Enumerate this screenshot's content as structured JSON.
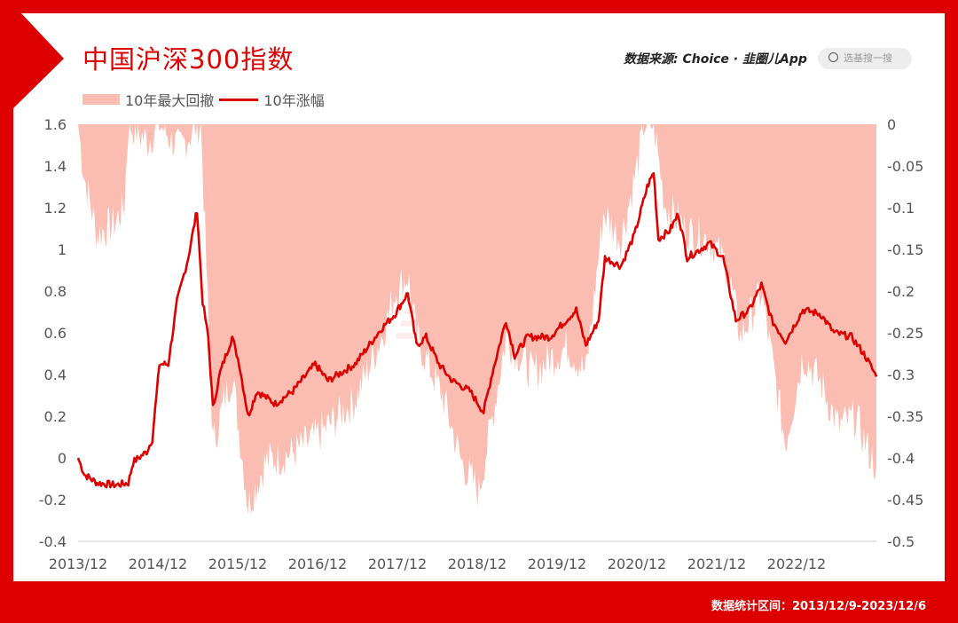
{
  "header": {
    "title": "中国沪深300指数",
    "source_label": "数据来源: Choice · ",
    "source_brand": "韭圈儿App",
    "search_placeholder": "选基搜一搜"
  },
  "footer": {
    "range": "数据统计区间：2013/12/9-2023/12/6"
  },
  "watermark": "韭圈儿",
  "colors": {
    "frame": "#dc0000",
    "line": "#dc0000",
    "area": "#fbbdb2"
  },
  "chart_data": {
    "type": "line+area",
    "title": "中国沪深300指数",
    "legend": [
      "10年最大回撤",
      "10年涨幅"
    ],
    "legend_placement": "top-left",
    "x_range": [
      2013.93,
      2023.93
    ],
    "x_ticks": [
      "2013/12",
      "2014/12",
      "2015/12",
      "2016/12",
      "2017/12",
      "2018/12",
      "2019/12",
      "2020/12",
      "2021/12",
      "2022/12"
    ],
    "y_left": {
      "range": [
        -0.4,
        1.6
      ],
      "ticks": [
        "1.6",
        "1.4",
        "1.2",
        "1",
        "0.8",
        "0.6",
        "0.4",
        "0.2",
        "0",
        "-0.2",
        "-0.4"
      ]
    },
    "y_right": {
      "range": [
        -0.5,
        0
      ],
      "ticks": [
        "0",
        "-0.05",
        "-0.1",
        "-0.15",
        "-0.2",
        "-0.25",
        "-0.3",
        "-0.35",
        "-0.4",
        "-0.45",
        "-0.5"
      ]
    },
    "series": [
      {
        "name": "10年涨幅",
        "axis": "left",
        "type": "line",
        "points": [
          [
            2013.93,
            0.0
          ],
          [
            2014.01,
            -0.08
          ],
          [
            2014.17,
            -0.12
          ],
          [
            2014.4,
            -0.13
          ],
          [
            2014.56,
            -0.12
          ],
          [
            2014.62,
            -0.02
          ],
          [
            2014.79,
            0.03
          ],
          [
            2014.86,
            0.09
          ],
          [
            2014.95,
            0.45
          ],
          [
            2015.06,
            0.45
          ],
          [
            2015.17,
            0.75
          ],
          [
            2015.31,
            0.96
          ],
          [
            2015.42,
            1.19
          ],
          [
            2015.49,
            0.75
          ],
          [
            2015.56,
            0.58
          ],
          [
            2015.62,
            0.24
          ],
          [
            2015.71,
            0.41
          ],
          [
            2015.86,
            0.58
          ],
          [
            2015.95,
            0.45
          ],
          [
            2016.06,
            0.2
          ],
          [
            2016.17,
            0.32
          ],
          [
            2016.4,
            0.26
          ],
          [
            2016.62,
            0.32
          ],
          [
            2016.9,
            0.45
          ],
          [
            2017.06,
            0.37
          ],
          [
            2017.4,
            0.45
          ],
          [
            2017.73,
            0.62
          ],
          [
            2017.9,
            0.69
          ],
          [
            2018.06,
            0.79
          ],
          [
            2018.17,
            0.54
          ],
          [
            2018.29,
            0.58
          ],
          [
            2018.45,
            0.45
          ],
          [
            2018.62,
            0.37
          ],
          [
            2018.84,
            0.32
          ],
          [
            2019.01,
            0.22
          ],
          [
            2019.12,
            0.41
          ],
          [
            2019.29,
            0.66
          ],
          [
            2019.4,
            0.49
          ],
          [
            2019.56,
            0.58
          ],
          [
            2019.84,
            0.58
          ],
          [
            2020.17,
            0.71
          ],
          [
            2020.29,
            0.54
          ],
          [
            2020.45,
            0.66
          ],
          [
            2020.53,
            0.96
          ],
          [
            2020.73,
            0.92
          ],
          [
            2020.9,
            1.07
          ],
          [
            2021.06,
            1.3
          ],
          [
            2021.14,
            1.37
          ],
          [
            2021.2,
            1.05
          ],
          [
            2021.34,
            1.09
          ],
          [
            2021.45,
            1.17
          ],
          [
            2021.56,
            0.96
          ],
          [
            2021.84,
            1.03
          ],
          [
            2022.01,
            0.96
          ],
          [
            2022.17,
            0.66
          ],
          [
            2022.34,
            0.71
          ],
          [
            2022.49,
            0.83
          ],
          [
            2022.62,
            0.66
          ],
          [
            2022.79,
            0.56
          ],
          [
            2023.01,
            0.71
          ],
          [
            2023.23,
            0.69
          ],
          [
            2023.4,
            0.6
          ],
          [
            2023.62,
            0.58
          ],
          [
            2023.79,
            0.49
          ],
          [
            2023.93,
            0.39
          ]
        ]
      },
      {
        "name": "10年最大回撤",
        "axis": "right",
        "type": "area",
        "points": [
          [
            2013.93,
            0.0
          ],
          [
            2014.01,
            -0.064
          ],
          [
            2014.17,
            -0.133
          ],
          [
            2014.4,
            -0.117
          ],
          [
            2014.51,
            -0.096
          ],
          [
            2014.56,
            0.0
          ],
          [
            2014.8,
            -0.02
          ],
          [
            2014.95,
            0.0
          ],
          [
            2015.2,
            -0.03
          ],
          [
            2015.42,
            0.0
          ],
          [
            2015.47,
            0.0
          ],
          [
            2015.62,
            -0.383
          ],
          [
            2015.86,
            -0.298
          ],
          [
            2016.06,
            -0.457
          ],
          [
            2016.28,
            -0.404
          ],
          [
            2016.62,
            -0.394
          ],
          [
            2016.95,
            -0.372
          ],
          [
            2017.4,
            -0.33
          ],
          [
            2017.73,
            -0.255
          ],
          [
            2017.9,
            -0.202
          ],
          [
            2018.06,
            -0.181
          ],
          [
            2018.17,
            -0.255
          ],
          [
            2018.51,
            -0.33
          ],
          [
            2018.73,
            -0.404
          ],
          [
            2018.95,
            -0.441
          ],
          [
            2019.12,
            -0.351
          ],
          [
            2019.29,
            -0.255
          ],
          [
            2019.62,
            -0.298
          ],
          [
            2020.06,
            -0.266
          ],
          [
            2020.29,
            -0.298
          ],
          [
            2020.51,
            -0.106
          ],
          [
            2020.73,
            -0.138
          ],
          [
            2020.95,
            -0.043
          ],
          [
            2021.01,
            0.0
          ],
          [
            2021.14,
            0.0
          ],
          [
            2021.28,
            -0.096
          ],
          [
            2021.56,
            -0.128
          ],
          [
            2021.84,
            -0.138
          ],
          [
            2022.06,
            -0.17
          ],
          [
            2022.23,
            -0.255
          ],
          [
            2022.49,
            -0.202
          ],
          [
            2022.79,
            -0.383
          ],
          [
            2023.01,
            -0.277
          ],
          [
            2023.23,
            -0.309
          ],
          [
            2023.45,
            -0.362
          ],
          [
            2023.67,
            -0.351
          ],
          [
            2023.84,
            -0.394
          ],
          [
            2023.93,
            -0.41
          ]
        ]
      }
    ]
  }
}
